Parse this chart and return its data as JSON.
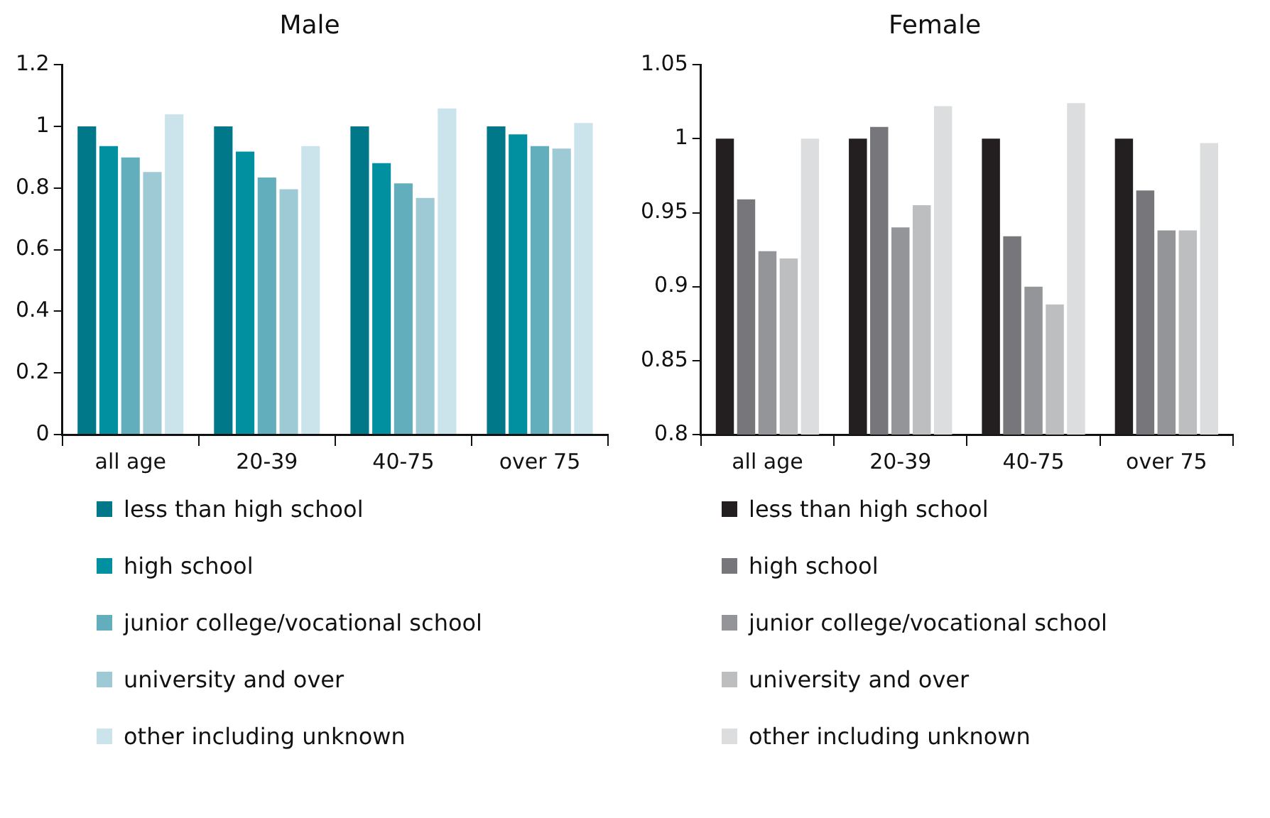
{
  "chart_data": [
    {
      "type": "bar",
      "title": "Male",
      "categories": [
        "all age",
        "20-39",
        "40-75",
        "over 75"
      ],
      "ylim": [
        0,
        1.2
      ],
      "yticks": [
        0,
        0.2,
        0.4,
        0.6,
        0.8,
        1,
        1.2
      ],
      "grid": false,
      "legend": "bottom",
      "series": [
        {
          "name": "less than high school",
          "color": "#00788a",
          "values": [
            1,
            1,
            1,
            1
          ]
        },
        {
          "name": "high school",
          "color": "#0090a0",
          "values": [
            0.936,
            0.918,
            0.881,
            0.974
          ]
        },
        {
          "name": "junior college/vocational school",
          "color": "#62aebc",
          "values": [
            0.899,
            0.834,
            0.815,
            0.936
          ]
        },
        {
          "name": "university and over",
          "color": "#9ecad6",
          "values": [
            0.852,
            0.796,
            0.768,
            0.928
          ]
        },
        {
          "name": "other including unknown",
          "color": "#cbe3ea",
          "values": [
            1.039,
            0.936,
            1.058,
            1.011
          ]
        }
      ]
    },
    {
      "type": "bar",
      "title": "Female",
      "categories": [
        "all age",
        "20-39",
        "40-75",
        "over 75"
      ],
      "ylim": [
        0.8,
        1.05
      ],
      "yticks": [
        0.8,
        0.85,
        0.9,
        0.95,
        1,
        1.05
      ],
      "grid": false,
      "legend": "bottom",
      "series": [
        {
          "name": "less than high school",
          "color": "#231f20",
          "values": [
            1,
            1,
            1,
            1
          ]
        },
        {
          "name": "high school",
          "color": "#77777b",
          "values": [
            0.959,
            1.008,
            0.934,
            0.965
          ]
        },
        {
          "name": "junior college/vocational school",
          "color": "#939598",
          "values": [
            0.924,
            0.94,
            0.9,
            0.938
          ]
        },
        {
          "name": "university and over",
          "color": "#bcbec0",
          "values": [
            0.919,
            0.955,
            0.888,
            0.938
          ]
        },
        {
          "name": "other including unknown",
          "color": "#dcddde",
          "values": [
            1,
            1.022,
            1.024,
            0.997
          ]
        }
      ]
    }
  ]
}
